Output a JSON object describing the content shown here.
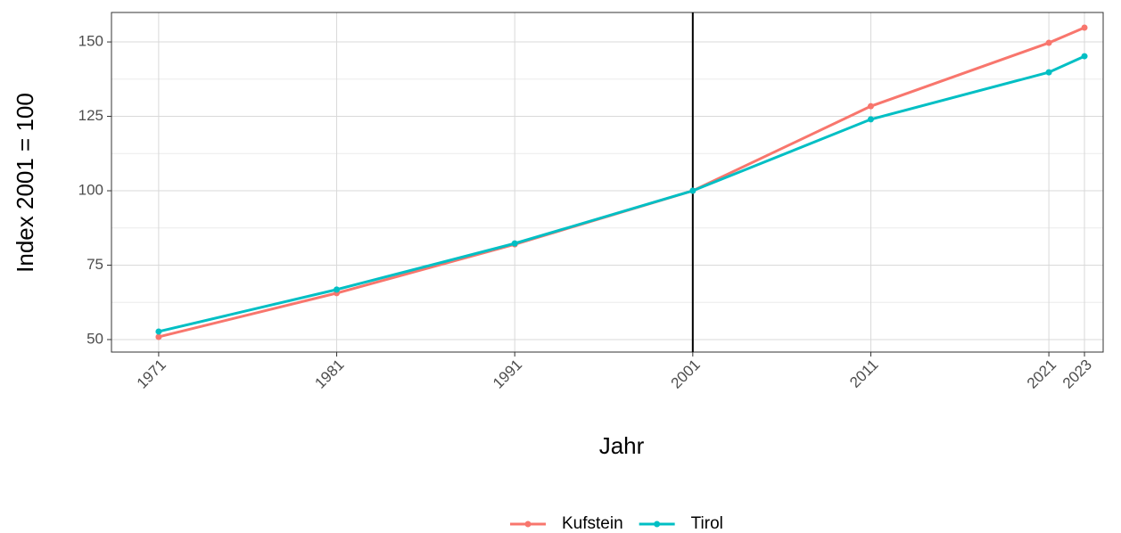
{
  "chart_data": {
    "type": "line",
    "x_label": "Jahr",
    "y_label": "Index 2001 = 100",
    "x": [
      1971,
      1981,
      1991,
      2001,
      2011,
      2021,
      2023
    ],
    "series": [
      {
        "name": "Kufstein",
        "color": "#F8766D",
        "values": [
          50.9,
          65.6,
          82,
          100,
          128.4,
          149.7,
          154.8
        ]
      },
      {
        "name": "Tirol",
        "color": "#00BFC4",
        "values": [
          52.7,
          66.8,
          82.3,
          100,
          124,
          139.8,
          145.2
        ]
      }
    ],
    "xlim": [
      1968.35,
      2024.05
    ],
    "xticks": [
      1971,
      1981,
      1991,
      2001,
      2011,
      2021,
      2023
    ],
    "ylim": [
      45.8,
      159.9
    ],
    "yticks": [
      50,
      75,
      100,
      125,
      150
    ],
    "y_minor_ticks": [
      62.5,
      87.5,
      112.5,
      137.5
    ],
    "vline": 2001,
    "grid": true,
    "legend": "bottom"
  }
}
